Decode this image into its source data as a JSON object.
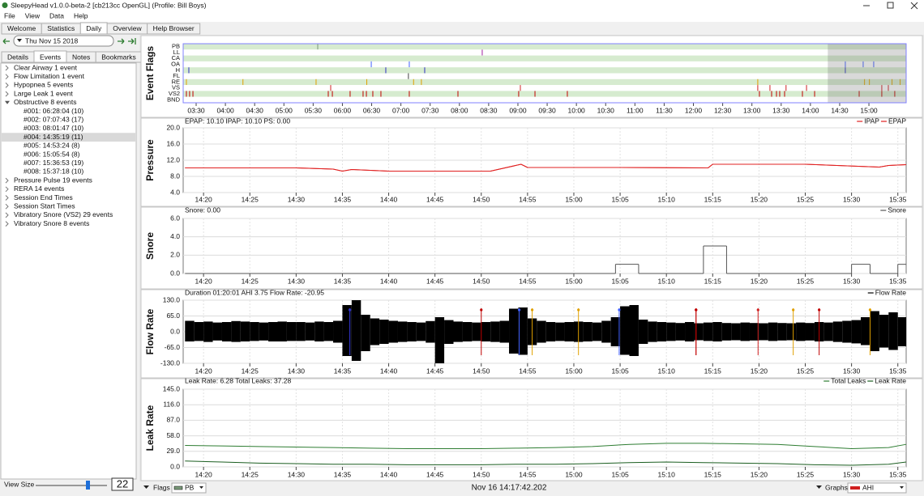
{
  "window": {
    "title": "SleepyHead v1.0.0-beta-2 [cb213cc OpenGL] (Profile: Bill Boys)"
  },
  "menu": [
    "File",
    "View",
    "Data",
    "Help"
  ],
  "tabs": {
    "items": [
      "Welcome",
      "Statistics",
      "Daily",
      "Overview",
      "Help Browser"
    ],
    "active": 2
  },
  "sidebar": {
    "date": "Thu Nov 15 2018",
    "tabs": {
      "items": [
        "Details",
        "Events",
        "Notes",
        "Bookmarks"
      ],
      "active": 1
    },
    "tree": [
      {
        "label": "Clear Airway 1 event"
      },
      {
        "label": "Flow Limitation 1 event"
      },
      {
        "label": "Hypopnea 5 events"
      },
      {
        "label": "Large Leak 1 event"
      },
      {
        "label": "Obstructive 8 events",
        "children": [
          "#001: 06:28:04 (10)",
          "#002: 07:07:43 (17)",
          "#003: 08:01:47 (10)",
          "#004: 14:35:19 (11)",
          "#005: 14:53:24 (8)",
          "#006: 15:05:54 (8)",
          "#007: 15:36:53 (19)",
          "#008: 15:37:18 (10)"
        ]
      },
      {
        "label": "Pressure Pulse 19 events"
      },
      {
        "label": "RERA 14 events"
      },
      {
        "label": "Session End Times"
      },
      {
        "label": "Session Start Times"
      },
      {
        "label": "Vibratory Snore (VS2)  29 events"
      },
      {
        "label": "Vibratory Snore 8 events"
      }
    ],
    "selected": [
      4,
      3
    ],
    "view_size_label": "View Size",
    "view_size": 22
  },
  "chart_data": [
    {
      "type": "event-flags",
      "ylabel": "Event Flags",
      "xlim": [
        196.7,
        938.2
      ],
      "xticks": [
        {
          "value": 210,
          "label": "03:30"
        },
        {
          "value": 240,
          "label": "04:00"
        },
        {
          "value": 270,
          "label": "04:30"
        },
        {
          "value": 300,
          "label": "05:00"
        },
        {
          "value": 330,
          "label": "05:30"
        },
        {
          "value": 360,
          "label": "06:00"
        },
        {
          "value": 390,
          "label": "06:30"
        },
        {
          "value": 420,
          "label": "07:00"
        },
        {
          "value": 450,
          "label": "07:30"
        },
        {
          "value": 480,
          "label": "08:00"
        },
        {
          "value": 510,
          "label": "08:30"
        },
        {
          "value": 540,
          "label": "09:00"
        },
        {
          "value": 570,
          "label": "09:30"
        },
        {
          "value": 600,
          "label": "10:00"
        },
        {
          "value": 630,
          "label": "10:30"
        },
        {
          "value": 660,
          "label": "11:00"
        },
        {
          "value": 690,
          "label": "11:30"
        },
        {
          "value": 720,
          "label": "12:00"
        },
        {
          "value": 750,
          "label": "12:30"
        },
        {
          "value": 780,
          "label": "13:00"
        },
        {
          "value": 810,
          "label": "13:30"
        },
        {
          "value": 840,
          "label": "14:00"
        },
        {
          "value": 870,
          "label": "14:30"
        },
        {
          "value": 900,
          "label": "15:00"
        }
      ],
      "rows": [
        {
          "name": "PB",
          "color": "#7a9a7a",
          "events": [
            334.7
          ]
        },
        {
          "name": "LL",
          "color": "#a020a0",
          "events": [
            503.4
          ]
        },
        {
          "name": "CA",
          "color": "#00a000",
          "events": []
        },
        {
          "name": "OA",
          "color": "#4060ff",
          "events": [
            389.6,
            428.6,
            875.8,
            894.1,
            904.9
          ]
        },
        {
          "name": "H",
          "color": "#3030c0",
          "events": [
            202.5,
            404.5,
            444.4,
            875.8
          ]
        },
        {
          "name": "FL",
          "color": "#404040",
          "events": [
            427.7
          ]
        },
        {
          "name": "RE",
          "color": "#e0a000",
          "events": [
            200,
            258,
            333,
            385,
            433,
            441,
            786,
            895.5,
            900.5,
            923.7,
            932
          ]
        },
        {
          "name": "VS",
          "color": "#d02020",
          "events": [
            348,
            542.5,
            786,
            798.5,
            815,
            836,
            913.2,
            919.9
          ]
        },
        {
          "name": "VS2",
          "color": "#c00000",
          "events": [
            200,
            203.3,
            206.7,
            345.5,
            349.7,
            367.9,
            381.2,
            384.6,
            391.2,
            399.5,
            428.6,
            478.5,
            540.8,
            557.5,
            590.7,
            787.7,
            800.2,
            805.2,
            808.5,
            813.5,
            831.8,
            844.3,
            890,
            913.2,
            926.5
          ]
        },
        {
          "name": "BND",
          "color": "#808080",
          "events": []
        }
      ]
    },
    {
      "type": "line",
      "ylabel": "Pressure",
      "info": "EPAP: 10.10 IPAP: 10.10 PS: 0.00",
      "grid": true,
      "xlim": [
        857.8,
        935.9
      ],
      "xticks": [
        {
          "value": 860,
          "label": "14:20"
        },
        {
          "value": 865,
          "label": "14:25"
        },
        {
          "value": 870,
          "label": "14:30"
        },
        {
          "value": 875,
          "label": "14:35"
        },
        {
          "value": 880,
          "label": "14:40"
        },
        {
          "value": 885,
          "label": "14:45"
        },
        {
          "value": 890,
          "label": "14:50"
        },
        {
          "value": 895,
          "label": "14:55"
        },
        {
          "value": 900,
          "label": "15:00"
        },
        {
          "value": 905,
          "label": "15:05"
        },
        {
          "value": 910,
          "label": "15:10"
        },
        {
          "value": 915,
          "label": "15:15"
        },
        {
          "value": 920,
          "label": "15:20"
        },
        {
          "value": 925,
          "label": "15:25"
        },
        {
          "value": 930,
          "label": "15:30"
        },
        {
          "value": 935,
          "label": "15:35"
        }
      ],
      "ylim": [
        4,
        20
      ],
      "yticks": [
        {
          "value": 4,
          "label": "4.0"
        },
        {
          "value": 8,
          "label": "8.0"
        },
        {
          "value": 12,
          "label": "12.0"
        },
        {
          "value": 16,
          "label": "16.0"
        },
        {
          "value": 20,
          "label": "20.0"
        }
      ],
      "x": [
        858,
        870,
        874,
        875,
        876,
        880,
        891,
        894.3,
        895,
        905,
        914.5,
        915,
        925,
        933,
        934,
        935.9
      ],
      "series": [
        {
          "name": "IPAP",
          "color": "#e02020",
          "values": [
            10.1,
            10.1,
            9.8,
            9.3,
            9.7,
            9.3,
            9.3,
            11.0,
            10.2,
            10.2,
            10.1,
            11.0,
            11.0,
            10.3,
            10.7,
            10.9
          ]
        },
        {
          "name": "EPAP",
          "color": "#e02020",
          "values": [
            10.1,
            10.1,
            9.8,
            9.3,
            9.7,
            9.3,
            9.3,
            11.0,
            10.2,
            10.2,
            10.1,
            11.0,
            11.0,
            10.3,
            10.7,
            10.9
          ]
        }
      ]
    },
    {
      "type": "step",
      "ylabel": "Snore",
      "info": "Snore: 0.00",
      "grid": true,
      "xlim": [
        857.8,
        935.9
      ],
      "xticks": [
        {
          "value": 860,
          "label": "14:20"
        },
        {
          "value": 865,
          "label": "14:25"
        },
        {
          "value": 870,
          "label": "14:30"
        },
        {
          "value": 875,
          "label": "14:35"
        },
        {
          "value": 880,
          "label": "14:40"
        },
        {
          "value": 885,
          "label": "14:45"
        },
        {
          "value": 890,
          "label": "14:50"
        },
        {
          "value": 895,
          "label": "14:55"
        },
        {
          "value": 900,
          "label": "15:00"
        },
        {
          "value": 905,
          "label": "15:05"
        },
        {
          "value": 910,
          "label": "15:10"
        },
        {
          "value": 915,
          "label": "15:15"
        },
        {
          "value": 920,
          "label": "15:20"
        },
        {
          "value": 925,
          "label": "15:25"
        },
        {
          "value": 930,
          "label": "15:30"
        },
        {
          "value": 935,
          "label": "15:35"
        }
      ],
      "ylim": [
        0,
        6
      ],
      "yticks": [
        {
          "value": 0,
          "label": "0.0"
        },
        {
          "value": 2,
          "label": "2.0"
        },
        {
          "value": 4,
          "label": "4.0"
        },
        {
          "value": 6,
          "label": "6.0"
        }
      ],
      "x": [
        858,
        904.5,
        907,
        914,
        916.5,
        930,
        932,
        935
      ],
      "series": [
        {
          "name": "Snore",
          "color": "#555555",
          "values": [
            0,
            1,
            0,
            3,
            0,
            1,
            0,
            1
          ]
        }
      ]
    },
    {
      "type": "envelope",
      "ylabel": "Flow Rate",
      "info": "Duration 01:20:01 AHI 3.75 Flow Rate: -20.95",
      "grid": true,
      "xlim": [
        857.8,
        935.9
      ],
      "xticks": [
        {
          "value": 860,
          "label": "14:20"
        },
        {
          "value": 865,
          "label": "14:25"
        },
        {
          "value": 870,
          "label": "14:30"
        },
        {
          "value": 875,
          "label": "14:35"
        },
        {
          "value": 880,
          "label": "14:40"
        },
        {
          "value": 885,
          "label": "14:45"
        },
        {
          "value": 890,
          "label": "14:50"
        },
        {
          "value": 895,
          "label": "14:55"
        },
        {
          "value": 900,
          "label": "15:00"
        },
        {
          "value": 905,
          "label": "15:05"
        },
        {
          "value": 910,
          "label": "15:10"
        },
        {
          "value": 915,
          "label": "15:15"
        },
        {
          "value": 920,
          "label": "15:20"
        },
        {
          "value": 925,
          "label": "15:25"
        },
        {
          "value": 930,
          "label": "15:30"
        },
        {
          "value": 935,
          "label": "15:35"
        }
      ],
      "ylim": [
        -130,
        130
      ],
      "yticks": [
        {
          "value": -130,
          "label": "-130.0"
        },
        {
          "value": -65,
          "label": "-65.0"
        },
        {
          "value": 0,
          "label": "0.0"
        },
        {
          "value": 65,
          "label": "65.0"
        },
        {
          "value": 130,
          "label": "130.0"
        }
      ],
      "x": [
        858,
        859,
        860,
        861,
        862,
        863,
        864,
        865,
        866,
        867,
        868,
        869,
        870,
        871,
        872,
        873,
        874,
        875,
        876,
        877,
        878,
        879,
        880,
        881,
        882,
        883,
        884,
        885,
        886,
        887,
        888,
        889,
        890,
        891,
        892,
        893,
        894,
        895,
        896,
        897,
        898,
        899,
        900,
        901,
        902,
        903,
        904,
        905,
        906,
        907,
        908,
        909,
        910,
        911,
        912,
        913,
        914,
        915,
        916,
        917,
        918,
        919,
        920,
        921,
        922,
        923,
        924,
        925,
        926,
        927,
        928,
        929,
        930,
        931,
        932,
        933,
        934,
        935,
        936
      ],
      "series": [
        {
          "name": "Flow Rate",
          "color": "#000000",
          "high": [
            45,
            40,
            42,
            38,
            40,
            44,
            42,
            40,
            38,
            40,
            42,
            40,
            40,
            38,
            42,
            40,
            45,
            110,
            130,
            70,
            55,
            50,
            45,
            42,
            40,
            38,
            44,
            60,
            48,
            42,
            40,
            38,
            40,
            42,
            45,
            95,
            100,
            55,
            45,
            40,
            38,
            40,
            42,
            40,
            38,
            45,
            60,
            105,
            110,
            50,
            42,
            40,
            38,
            36,
            40,
            35,
            38,
            40,
            36,
            35,
            38,
            36,
            35,
            38,
            36,
            35,
            38,
            36,
            40,
            38,
            42,
            45,
            48,
            60,
            85,
            70,
            80,
            60,
            55
          ],
          "low": [
            -40,
            -38,
            -42,
            -36,
            -40,
            -42,
            -40,
            -38,
            -36,
            -40,
            -40,
            -38,
            -38,
            -36,
            -40,
            -38,
            -45,
            -100,
            -120,
            -80,
            -55,
            -50,
            -45,
            -42,
            -40,
            -38,
            -45,
            -130,
            -50,
            -42,
            -40,
            -38,
            -40,
            -42,
            -45,
            -90,
            -95,
            -55,
            -45,
            -40,
            -38,
            -40,
            -42,
            -40,
            -38,
            -45,
            -60,
            -95,
            -100,
            -50,
            -42,
            -40,
            -38,
            -36,
            -40,
            -35,
            -38,
            -40,
            -36,
            -35,
            -38,
            -36,
            -35,
            -38,
            -36,
            -35,
            -38,
            -36,
            -40,
            -38,
            -42,
            -45,
            -48,
            -55,
            -80,
            -65,
            -75,
            -60,
            -55
          ]
        }
      ]
    },
    {
      "type": "line",
      "ylabel": "Leak Rate",
      "info": "Leak Rate: 6.28 Total Leaks: 37.28",
      "grid": true,
      "xlim": [
        857.8,
        935.9
      ],
      "xticks": [
        {
          "value": 860,
          "label": "14:20"
        },
        {
          "value": 865,
          "label": "14:25"
        },
        {
          "value": 870,
          "label": "14:30"
        },
        {
          "value": 875,
          "label": "14:35"
        },
        {
          "value": 880,
          "label": "14:40"
        },
        {
          "value": 885,
          "label": "14:45"
        },
        {
          "value": 890,
          "label": "14:50"
        },
        {
          "value": 895,
          "label": "14:55"
        },
        {
          "value": 900,
          "label": "15:00"
        },
        {
          "value": 905,
          "label": "15:05"
        },
        {
          "value": 910,
          "label": "15:10"
        },
        {
          "value": 915,
          "label": "15:15"
        },
        {
          "value": 920,
          "label": "15:20"
        },
        {
          "value": 925,
          "label": "15:25"
        },
        {
          "value": 930,
          "label": "15:30"
        },
        {
          "value": 935,
          "label": "15:35"
        }
      ],
      "ylim": [
        0,
        145
      ],
      "yticks": [
        {
          "value": 0,
          "label": "0.0"
        },
        {
          "value": 29,
          "label": "29.0"
        },
        {
          "value": 58,
          "label": "58.0"
        },
        {
          "value": 87,
          "label": "87.0"
        },
        {
          "value": 116,
          "label": "116.0"
        },
        {
          "value": 145,
          "label": "145.0"
        }
      ],
      "x": [
        858,
        862,
        866,
        870,
        874,
        878,
        882,
        886,
        890,
        894,
        898,
        902,
        906,
        910,
        914,
        918,
        922,
        926,
        930,
        934,
        935.9
      ],
      "series": [
        {
          "name": "Total Leaks",
          "color": "#2e7d32",
          "values": [
            40,
            39,
            38,
            37,
            36,
            35,
            34,
            34,
            34,
            35,
            36,
            38,
            42,
            44,
            44,
            43,
            42,
            38,
            34,
            36,
            42
          ]
        },
        {
          "name": "Leak Rate",
          "color": "#1b5e20",
          "values": [
            11,
            9,
            7,
            6,
            5,
            5,
            4,
            4,
            4,
            5,
            5,
            6,
            8,
            9,
            8,
            7,
            6,
            4,
            3,
            5,
            9
          ]
        }
      ]
    }
  ],
  "footer": {
    "flags_label": "Flags",
    "flags_select": "PB",
    "datetime": "Nov 16 14:17:42.202",
    "graphs_label": "Graphs",
    "graphs_select": "AHI"
  }
}
